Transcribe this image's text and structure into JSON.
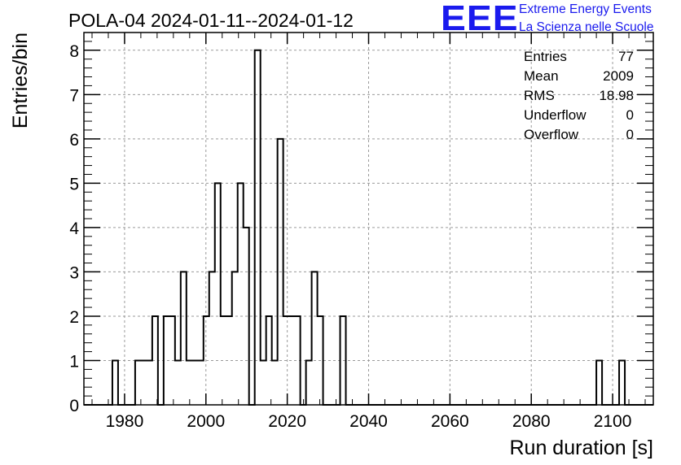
{
  "chart_data": {
    "type": "bar",
    "title": "POLA-04 2024-01-11--2024-01-12",
    "xlabel": "Run duration [s]",
    "ylabel": "Entries/bin",
    "xlim": [
      1970,
      2110
    ],
    "ylim": [
      0,
      8.4
    ],
    "grid": true,
    "style": "step-histogram",
    "xticks": [
      1980,
      2000,
      2020,
      2040,
      2060,
      2080,
      2100
    ],
    "yticks": [
      0,
      1,
      2,
      3,
      4,
      5,
      6,
      7,
      8
    ],
    "bin_width": 1.4,
    "bins": [
      {
        "x_low": 1971.4,
        "value": 0
      },
      {
        "x_low": 1972.8,
        "value": 0
      },
      {
        "x_low": 1974.2,
        "value": 0
      },
      {
        "x_low": 1975.6,
        "value": 0
      },
      {
        "x_low": 1977.0,
        "value": 1
      },
      {
        "x_low": 1978.4,
        "value": 0
      },
      {
        "x_low": 1979.8,
        "value": 0
      },
      {
        "x_low": 1981.2,
        "value": 0
      },
      {
        "x_low": 1982.6,
        "value": 1
      },
      {
        "x_low": 1984.0,
        "value": 1
      },
      {
        "x_low": 1985.4,
        "value": 1
      },
      {
        "x_low": 1986.8,
        "value": 2
      },
      {
        "x_low": 1988.2,
        "value": 0
      },
      {
        "x_low": 1989.6,
        "value": 2
      },
      {
        "x_low": 1991.0,
        "value": 2
      },
      {
        "x_low": 1992.4,
        "value": 1
      },
      {
        "x_low": 1993.8,
        "value": 3
      },
      {
        "x_low": 1995.2,
        "value": 1
      },
      {
        "x_low": 1996.6,
        "value": 1
      },
      {
        "x_low": 1998.0,
        "value": 1
      },
      {
        "x_low": 1999.4,
        "value": 2
      },
      {
        "x_low": 2000.8,
        "value": 3
      },
      {
        "x_low": 2002.2,
        "value": 5
      },
      {
        "x_low": 2003.6,
        "value": 2
      },
      {
        "x_low": 2005.0,
        "value": 2
      },
      {
        "x_low": 2006.4,
        "value": 3
      },
      {
        "x_low": 2007.8,
        "value": 5
      },
      {
        "x_low": 2009.2,
        "value": 4
      },
      {
        "x_low": 2010.6,
        "value": 0
      },
      {
        "x_low": 2012.0,
        "value": 8
      },
      {
        "x_low": 2013.4,
        "value": 1
      },
      {
        "x_low": 2014.8,
        "value": 2
      },
      {
        "x_low": 2016.2,
        "value": 1
      },
      {
        "x_low": 2017.6,
        "value": 6
      },
      {
        "x_low": 2019.0,
        "value": 2
      },
      {
        "x_low": 2020.4,
        "value": 2
      },
      {
        "x_low": 2021.8,
        "value": 2
      },
      {
        "x_low": 2023.2,
        "value": 0
      },
      {
        "x_low": 2024.6,
        "value": 1
      },
      {
        "x_low": 2026.0,
        "value": 3
      },
      {
        "x_low": 2027.4,
        "value": 2
      },
      {
        "x_low": 2028.8,
        "value": 0
      },
      {
        "x_low": 2030.2,
        "value": 0
      },
      {
        "x_low": 2031.6,
        "value": 0
      },
      {
        "x_low": 2033.0,
        "value": 2
      },
      {
        "x_low": 2096.0,
        "value": 1
      },
      {
        "x_low": 2101.6,
        "value": 1
      }
    ],
    "stats": [
      {
        "label": "Entries",
        "value": "77"
      },
      {
        "label": "Mean",
        "value": "2009"
      },
      {
        "label": "RMS",
        "value": "18.98"
      },
      {
        "label": "Underflow",
        "value": "0"
      },
      {
        "label": "Overflow",
        "value": "0"
      }
    ],
    "colors": {
      "line": "#000000",
      "grid": "#9a9a9a",
      "logo": "#1a1aee"
    }
  },
  "logo": {
    "letters": "EEE",
    "line1": "Extreme Energy Events",
    "line2": "La Scienza nelle Scuole"
  }
}
